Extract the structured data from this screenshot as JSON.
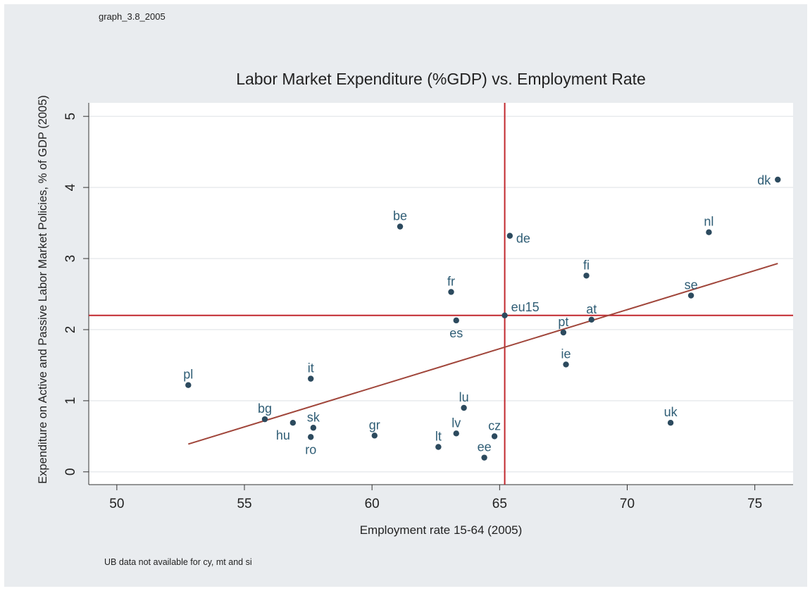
{
  "figure_id": "graph_3.8_2005",
  "footnote": "UB data not available for cy, mt and si",
  "chart_data": {
    "type": "scatter",
    "title": "Labor Market Expenditure (%GDP) vs. Employment Rate",
    "xlabel": "Employment rate 15-64 (2005)",
    "ylabel": "Expenditure on Active and Passive Labor Market Policies,  % of GDP (2005)",
    "xlim": [
      48.9,
      76.5
    ],
    "ylim": [
      -0.18,
      5.19
    ],
    "xticks": [
      50,
      55,
      60,
      65,
      70,
      75
    ],
    "yticks": [
      0,
      1,
      2,
      3,
      4,
      5
    ],
    "grid": true,
    "colors": {
      "point": "#2c4a5e",
      "label": "#2f5d75",
      "reference": "#c1272d",
      "fit": "#a0453a",
      "plot_bg": "#ffffff",
      "outer_bg": "#e9ecef"
    },
    "points": [
      {
        "label": "pl",
        "x": 52.8,
        "y": 1.22,
        "pos": "above"
      },
      {
        "label": "bg",
        "x": 55.8,
        "y": 0.74,
        "pos": "above"
      },
      {
        "label": "hu",
        "x": 56.9,
        "y": 0.69,
        "pos": "below-left"
      },
      {
        "label": "it",
        "x": 57.6,
        "y": 1.31,
        "pos": "above"
      },
      {
        "label": "ro",
        "x": 57.6,
        "y": 0.49,
        "pos": "below"
      },
      {
        "label": "sk",
        "x": 57.7,
        "y": 0.62,
        "pos": "above"
      },
      {
        "label": "gr",
        "x": 60.1,
        "y": 0.51,
        "pos": "above"
      },
      {
        "label": "be",
        "x": 61.1,
        "y": 3.45,
        "pos": "above"
      },
      {
        "label": "lt",
        "x": 62.6,
        "y": 0.35,
        "pos": "above"
      },
      {
        "label": "fr",
        "x": 63.1,
        "y": 2.53,
        "pos": "above"
      },
      {
        "label": "es",
        "x": 63.3,
        "y": 2.13,
        "pos": "below"
      },
      {
        "label": "lv",
        "x": 63.3,
        "y": 0.54,
        "pos": "above"
      },
      {
        "label": "lu",
        "x": 63.6,
        "y": 0.9,
        "pos": "above"
      },
      {
        "label": "ee",
        "x": 64.4,
        "y": 0.2,
        "pos": "above"
      },
      {
        "label": "cz",
        "x": 64.8,
        "y": 0.5,
        "pos": "above"
      },
      {
        "label": "eu15",
        "x": 65.2,
        "y": 2.2,
        "pos": "upper-right"
      },
      {
        "label": "de",
        "x": 65.4,
        "y": 3.32,
        "pos": "right"
      },
      {
        "label": "pt",
        "x": 67.5,
        "y": 1.96,
        "pos": "above"
      },
      {
        "label": "ie",
        "x": 67.6,
        "y": 1.51,
        "pos": "above"
      },
      {
        "label": "fi",
        "x": 68.4,
        "y": 2.76,
        "pos": "above"
      },
      {
        "label": "at",
        "x": 68.6,
        "y": 2.14,
        "pos": "above"
      },
      {
        "label": "uk",
        "x": 71.7,
        "y": 0.69,
        "pos": "above"
      },
      {
        "label": "se",
        "x": 72.5,
        "y": 2.48,
        "pos": "above"
      },
      {
        "label": "nl",
        "x": 73.2,
        "y": 3.37,
        "pos": "above"
      },
      {
        "label": "dk",
        "x": 75.9,
        "y": 4.11,
        "pos": "left"
      }
    ],
    "reference_lines": {
      "x": 65.2,
      "y": 2.2
    },
    "fit_line": {
      "x": [
        52.8,
        75.9
      ],
      "y": [
        0.39,
        2.93
      ]
    }
  }
}
